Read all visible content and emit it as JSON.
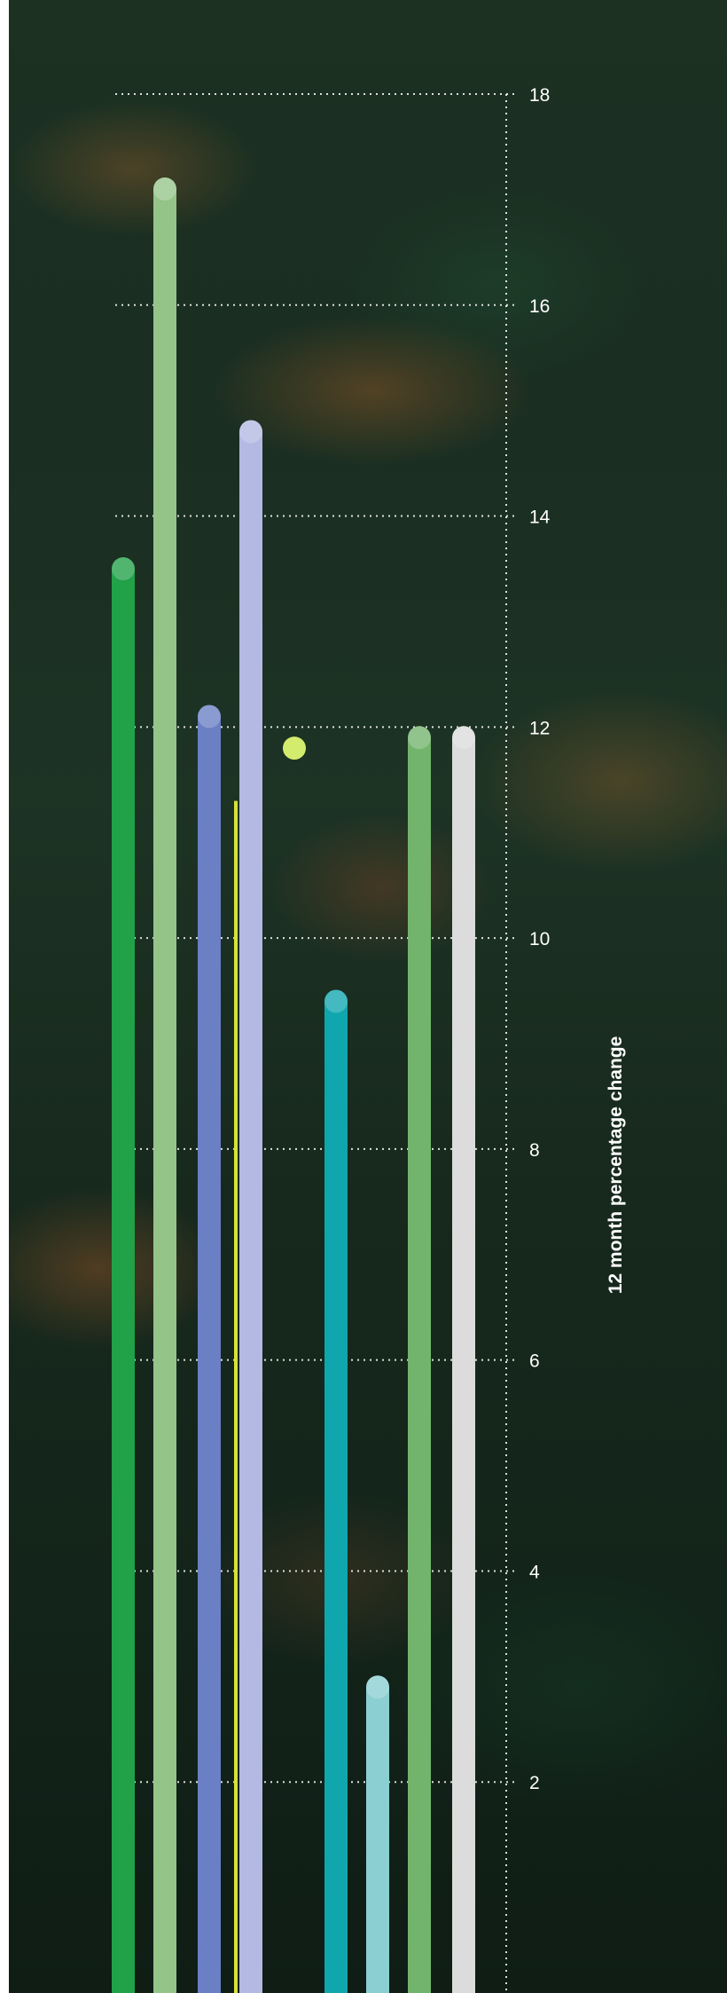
{
  "chart_data": {
    "type": "bar",
    "ylabel": "12 month percentage change",
    "ylim": [
      0,
      18
    ],
    "yticks": [
      2,
      4,
      6,
      8,
      10,
      12,
      14,
      16,
      18
    ],
    "grid": true,
    "series": [
      {
        "values": [
          13.5
        ],
        "color": "#21a148"
      },
      {
        "values": [
          17.1
        ],
        "color": "#95c489"
      },
      {
        "values": [
          12.1
        ],
        "color": "#6a7fc4"
      },
      {
        "values": [
          11.3
        ],
        "color": "#d6e23a"
      },
      {
        "values": [
          14.8
        ],
        "color": "#b3b9e2"
      },
      {
        "values": [
          11.8
        ],
        "color": "#d4ec6e"
      },
      {
        "values": [
          9.4
        ],
        "color": "#10a6ad"
      },
      {
        "values": [
          2.9
        ],
        "color": "#8bcfd2"
      },
      {
        "values": [
          11.9
        ],
        "color": "#73b46c"
      },
      {
        "values": [
          11.9
        ],
        "color": "#dcdcdc"
      }
    ]
  }
}
